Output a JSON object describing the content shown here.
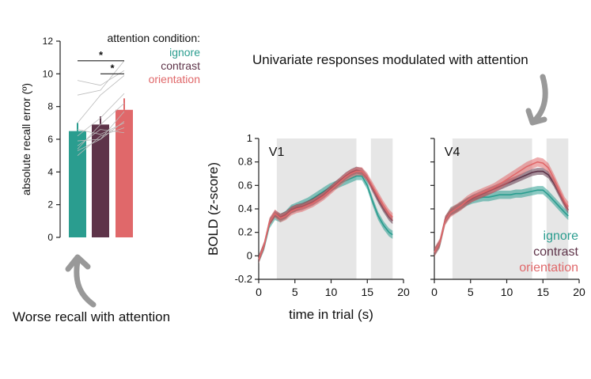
{
  "captions": {
    "left": "Worse recall with attention",
    "right": "Univariate responses modulated with attention"
  },
  "colors": {
    "ignore": "#2a9d8f",
    "contrast": "#5e3449",
    "orientation": "#e0686a",
    "stimulus_shade": "#e6e6e6",
    "subject_line": "#bbbbbb",
    "arrow": "#999999"
  },
  "chart_data": [
    {
      "type": "bar",
      "categories": [
        "ignore",
        "contrast",
        "orientation"
      ],
      "values": [
        6.5,
        6.9,
        7.8
      ],
      "errors": [
        0.5,
        0.5,
        0.7
      ],
      "ylabel": "absolute recall error (º)",
      "ylim": [
        0,
        12
      ],
      "yticks": [
        0,
        2,
        4,
        6,
        8,
        10,
        12
      ],
      "legend_title": "attention condition:",
      "legend": [
        "ignore",
        "contrast",
        "orientation"
      ],
      "legend_position": "top-right",
      "significance": [
        {
          "from": "ignore",
          "to": "orientation",
          "label": "*"
        },
        {
          "from": "contrast",
          "to": "orientation",
          "label": "*"
        }
      ],
      "subjects": [
        [
          5.0,
          6.2,
          6.7
        ],
        [
          5.3,
          6.0,
          7.1
        ],
        [
          5.6,
          6.6,
          6.4
        ],
        [
          5.9,
          6.0,
          7.7
        ],
        [
          6.2,
          7.3,
          8.8
        ],
        [
          6.6,
          6.3,
          7.0
        ],
        [
          7.0,
          8.7,
          9.9
        ],
        [
          8.7,
          9.0,
          10.8
        ],
        [
          9.6,
          9.3,
          10.2
        ],
        [
          5.4,
          6.9,
          8.2
        ]
      ]
    },
    {
      "type": "line",
      "title": "V1",
      "xlabel": "time in trial (s)",
      "ylabel": "BOLD (z-score)",
      "xlim": [
        0,
        20
      ],
      "ylim": [
        -0.2,
        1
      ],
      "xticks": [
        0,
        5,
        10,
        15,
        20
      ],
      "yticks": [
        -0.2,
        0,
        0.2,
        0.4,
        0.6,
        0.8,
        1
      ],
      "shaded_intervals": [
        [
          2.5,
          13.5
        ],
        [
          15.5,
          18.5
        ]
      ],
      "x": [
        0,
        0.75,
        1.5,
        2.25,
        3,
        3.75,
        4.5,
        5.25,
        6,
        6.75,
        7.5,
        8.25,
        9,
        9.75,
        10.5,
        11.25,
        12,
        12.75,
        13.5,
        14.25,
        15,
        15.75,
        16.5,
        17.25,
        18,
        18.5
      ],
      "series": [
        {
          "name": "ignore",
          "band": 0.035,
          "values": [
            -0.03,
            0.08,
            0.27,
            0.34,
            0.32,
            0.35,
            0.4,
            0.42,
            0.44,
            0.46,
            0.49,
            0.52,
            0.55,
            0.58,
            0.6,
            0.62,
            0.64,
            0.66,
            0.68,
            0.68,
            0.6,
            0.46,
            0.34,
            0.26,
            0.2,
            0.18
          ]
        },
        {
          "name": "contrast",
          "band": 0.03,
          "values": [
            -0.03,
            0.09,
            0.29,
            0.36,
            0.33,
            0.35,
            0.39,
            0.41,
            0.42,
            0.44,
            0.46,
            0.49,
            0.52,
            0.56,
            0.6,
            0.64,
            0.68,
            0.71,
            0.73,
            0.72,
            0.66,
            0.57,
            0.48,
            0.4,
            0.33,
            0.3
          ]
        },
        {
          "name": "orientation",
          "band": 0.035,
          "values": [
            -0.03,
            0.09,
            0.29,
            0.36,
            0.32,
            0.34,
            0.38,
            0.4,
            0.41,
            0.43,
            0.45,
            0.48,
            0.51,
            0.55,
            0.59,
            0.63,
            0.67,
            0.7,
            0.72,
            0.72,
            0.67,
            0.59,
            0.51,
            0.43,
            0.36,
            0.33
          ]
        }
      ]
    },
    {
      "type": "line",
      "title": "V4",
      "xlim": [
        0,
        20
      ],
      "ylim": [
        -0.2,
        1
      ],
      "xticks": [
        0,
        5,
        10,
        15,
        20
      ],
      "shaded_intervals": [
        [
          2.5,
          13.5
        ],
        [
          15.5,
          18.5
        ]
      ],
      "x": [
        0,
        0.75,
        1.5,
        2.25,
        3,
        3.75,
        4.5,
        5.25,
        6,
        6.75,
        7.5,
        8.25,
        9,
        9.75,
        10.5,
        11.25,
        12,
        12.75,
        13.5,
        14.25,
        15,
        15.75,
        16.5,
        17.25,
        18,
        18.5
      ],
      "series": [
        {
          "name": "ignore",
          "band": 0.035,
          "values": [
            0.03,
            0.1,
            0.3,
            0.38,
            0.4,
            0.43,
            0.46,
            0.48,
            0.49,
            0.5,
            0.5,
            0.51,
            0.52,
            0.52,
            0.52,
            0.53,
            0.53,
            0.54,
            0.55,
            0.56,
            0.56,
            0.52,
            0.47,
            0.42,
            0.37,
            0.34
          ]
        },
        {
          "name": "contrast",
          "band": 0.03,
          "values": [
            0.03,
            0.11,
            0.31,
            0.37,
            0.4,
            0.43,
            0.46,
            0.49,
            0.51,
            0.53,
            0.55,
            0.57,
            0.59,
            0.61,
            0.63,
            0.65,
            0.67,
            0.69,
            0.71,
            0.72,
            0.72,
            0.69,
            0.62,
            0.53,
            0.44,
            0.39
          ]
        },
        {
          "name": "orientation",
          "band": 0.04,
          "values": [
            0.03,
            0.11,
            0.3,
            0.37,
            0.4,
            0.43,
            0.47,
            0.5,
            0.52,
            0.54,
            0.56,
            0.58,
            0.61,
            0.64,
            0.67,
            0.7,
            0.73,
            0.76,
            0.78,
            0.8,
            0.79,
            0.75,
            0.66,
            0.56,
            0.46,
            0.42
          ]
        }
      ],
      "legend": [
        "ignore",
        "contrast",
        "orientation"
      ],
      "legend_position": "bottom-right"
    }
  ]
}
